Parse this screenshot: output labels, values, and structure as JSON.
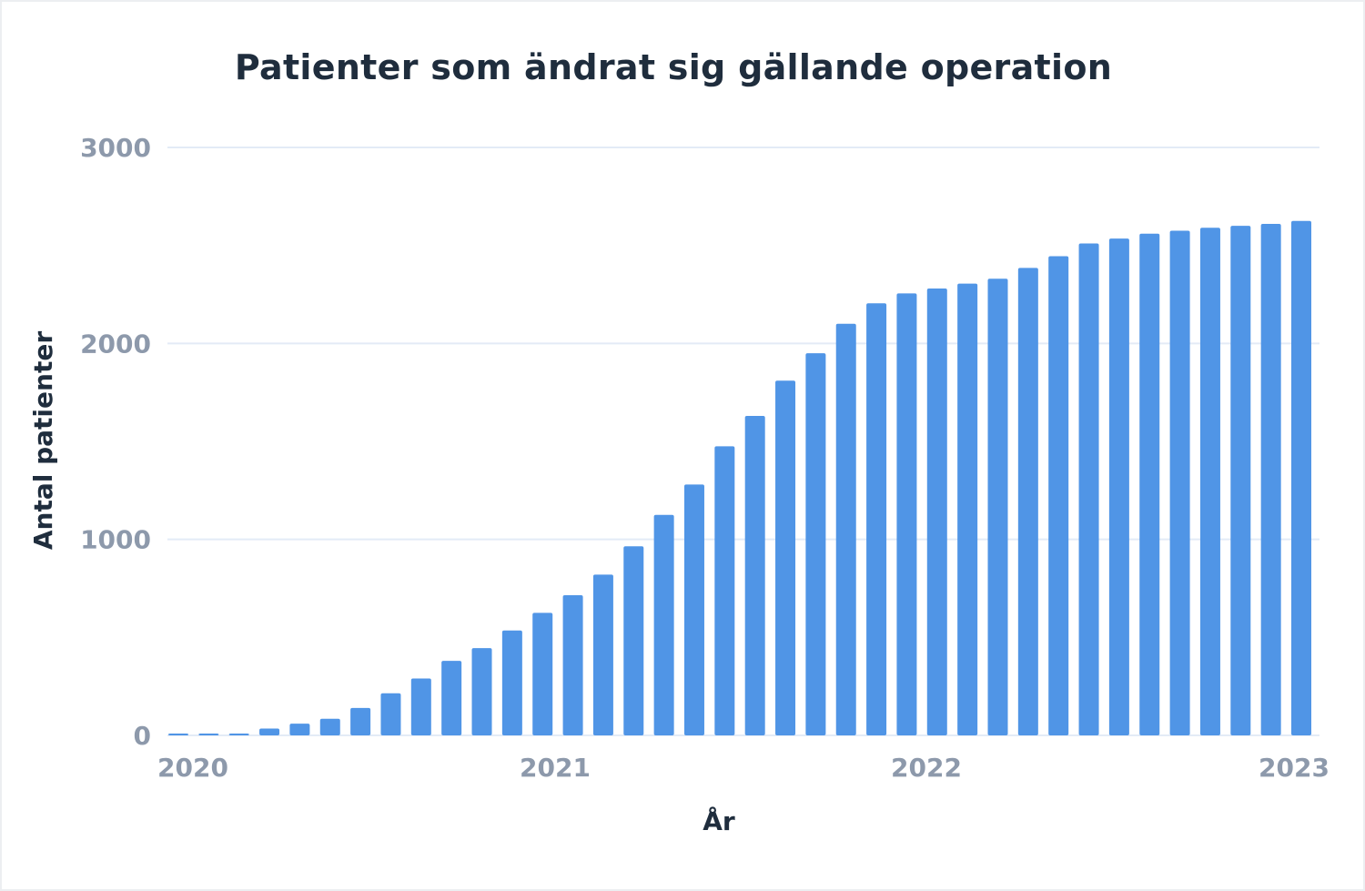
{
  "chart_data": {
    "type": "bar",
    "title": "Patienter som ändrat sig gällande operation",
    "xlabel": "År",
    "ylabel": "Antal patienter",
    "ylim": [
      0,
      3000
    ],
    "yticks": [
      "0",
      "1000",
      "2000",
      "3000"
    ],
    "xticks": [
      "2020",
      "2021",
      "2022",
      "2023"
    ],
    "grid": true,
    "color": "#5095e6",
    "x": [
      "2020-01",
      "2020-02",
      "2020-03",
      "2020-04",
      "2020-05",
      "2020-06",
      "2020-07",
      "2020-08",
      "2020-09",
      "2020-10",
      "2020-11",
      "2020-12",
      "2021-01",
      "2021-02",
      "2021-03",
      "2021-04",
      "2021-05",
      "2021-06",
      "2021-07",
      "2021-08",
      "2021-09",
      "2021-10",
      "2021-11",
      "2021-12",
      "2022-01",
      "2022-02",
      "2022-03",
      "2022-04",
      "2022-05",
      "2022-06",
      "2022-07",
      "2022-08",
      "2022-09",
      "2022-10",
      "2022-11",
      "2022-12",
      "2023-01",
      "2023-02"
    ],
    "values": [
      8,
      8,
      8,
      35,
      60,
      85,
      140,
      215,
      290,
      380,
      445,
      535,
      625,
      715,
      820,
      965,
      1125,
      1280,
      1475,
      1630,
      1810,
      1950,
      2100,
      2205,
      2255,
      2280,
      2305,
      2330,
      2385,
      2445,
      2510,
      2535,
      2560,
      2575,
      2590,
      2600,
      2610,
      2625
    ]
  }
}
